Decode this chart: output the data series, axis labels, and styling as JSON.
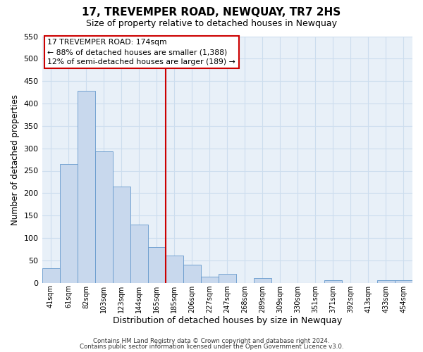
{
  "title": "17, TREVEMPER ROAD, NEWQUAY, TR7 2HS",
  "subtitle": "Size of property relative to detached houses in Newquay",
  "xlabel": "Distribution of detached houses by size in Newquay",
  "ylabel": "Number of detached properties",
  "bar_labels": [
    "41sqm",
    "61sqm",
    "82sqm",
    "103sqm",
    "123sqm",
    "144sqm",
    "165sqm",
    "185sqm",
    "206sqm",
    "227sqm",
    "247sqm",
    "268sqm",
    "289sqm",
    "309sqm",
    "330sqm",
    "351sqm",
    "371sqm",
    "392sqm",
    "413sqm",
    "433sqm",
    "454sqm"
  ],
  "bar_heights": [
    32,
    265,
    428,
    293,
    214,
    130,
    80,
    60,
    40,
    14,
    20,
    0,
    10,
    0,
    0,
    0,
    5,
    0,
    0,
    5,
    5
  ],
  "bar_color": "#c8d8ed",
  "bar_edge_color": "#6699cc",
  "vline_x": 7,
  "vline_color": "#cc0000",
  "ylim": [
    0,
    550
  ],
  "yticks": [
    0,
    50,
    100,
    150,
    200,
    250,
    300,
    350,
    400,
    450,
    500,
    550
  ],
  "annotation_title": "17 TREVEMPER ROAD: 174sqm",
  "annotation_line1": "← 88% of detached houses are smaller (1,388)",
  "annotation_line2": "12% of semi-detached houses are larger (189) →",
  "annotation_box_color": "#ffffff",
  "annotation_box_edge": "#cc0000",
  "footer_line1": "Contains HM Land Registry data © Crown copyright and database right 2024.",
  "footer_line2": "Contains public sector information licensed under the Open Government Licence v3.0.",
  "grid_color": "#ccddee",
  "plot_bg_color": "#e8f0f8",
  "background_color": "#ffffff"
}
